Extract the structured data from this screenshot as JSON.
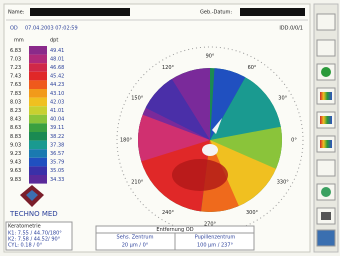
{
  "header": {
    "name_label": "Name:",
    "birth_label": "Geb.-Datum:",
    "eye": "OD",
    "datetime": "07.04.2003 07:02:59",
    "file_id": "IDD.0/0/1"
  },
  "scale": {
    "unit_mm": "mm",
    "unit_dpt": "dpt",
    "rows": [
      [
        "6.83",
        "49.41"
      ],
      [
        "7.03",
        "48.01"
      ],
      [
        "7.23",
        "46.68"
      ],
      [
        "7.43",
        "45.42"
      ],
      [
        "7.63",
        "44.23"
      ],
      [
        "7.83",
        "43.10"
      ],
      [
        "8.03",
        "42.03"
      ],
      [
        "8.23",
        "41.01"
      ],
      [
        "8.43",
        "40.04"
      ],
      [
        "8.63",
        "39.11"
      ],
      [
        "8.83",
        "38.22"
      ],
      [
        "9.03",
        "37.38"
      ],
      [
        "9.23",
        "36.57"
      ],
      [
        "9.43",
        "35.79"
      ],
      [
        "9.63",
        "35.05"
      ],
      [
        "9.83",
        "34.33"
      ]
    ]
  },
  "angles": [
    "0°",
    "30°",
    "60°",
    "90°",
    "120°",
    "150°",
    "180°",
    "210°",
    "240°",
    "270°",
    "300°",
    "330°"
  ],
  "logo": "TECHNO MED",
  "keratometry": {
    "title": "Keratometrie",
    "lines": [
      "K1: 7.55 / 44.70/180°",
      "K2: 7.58 / 44.52/ 90°",
      "CYL: 0.18 / 0°"
    ]
  },
  "center_box": {
    "title": "Entfernung OD",
    "col1": "Sehs. Zentrum",
    "col2": "Pupillenzentrum",
    "val1": "20 µm / 0°",
    "val2": "100 µm / 237°"
  }
}
